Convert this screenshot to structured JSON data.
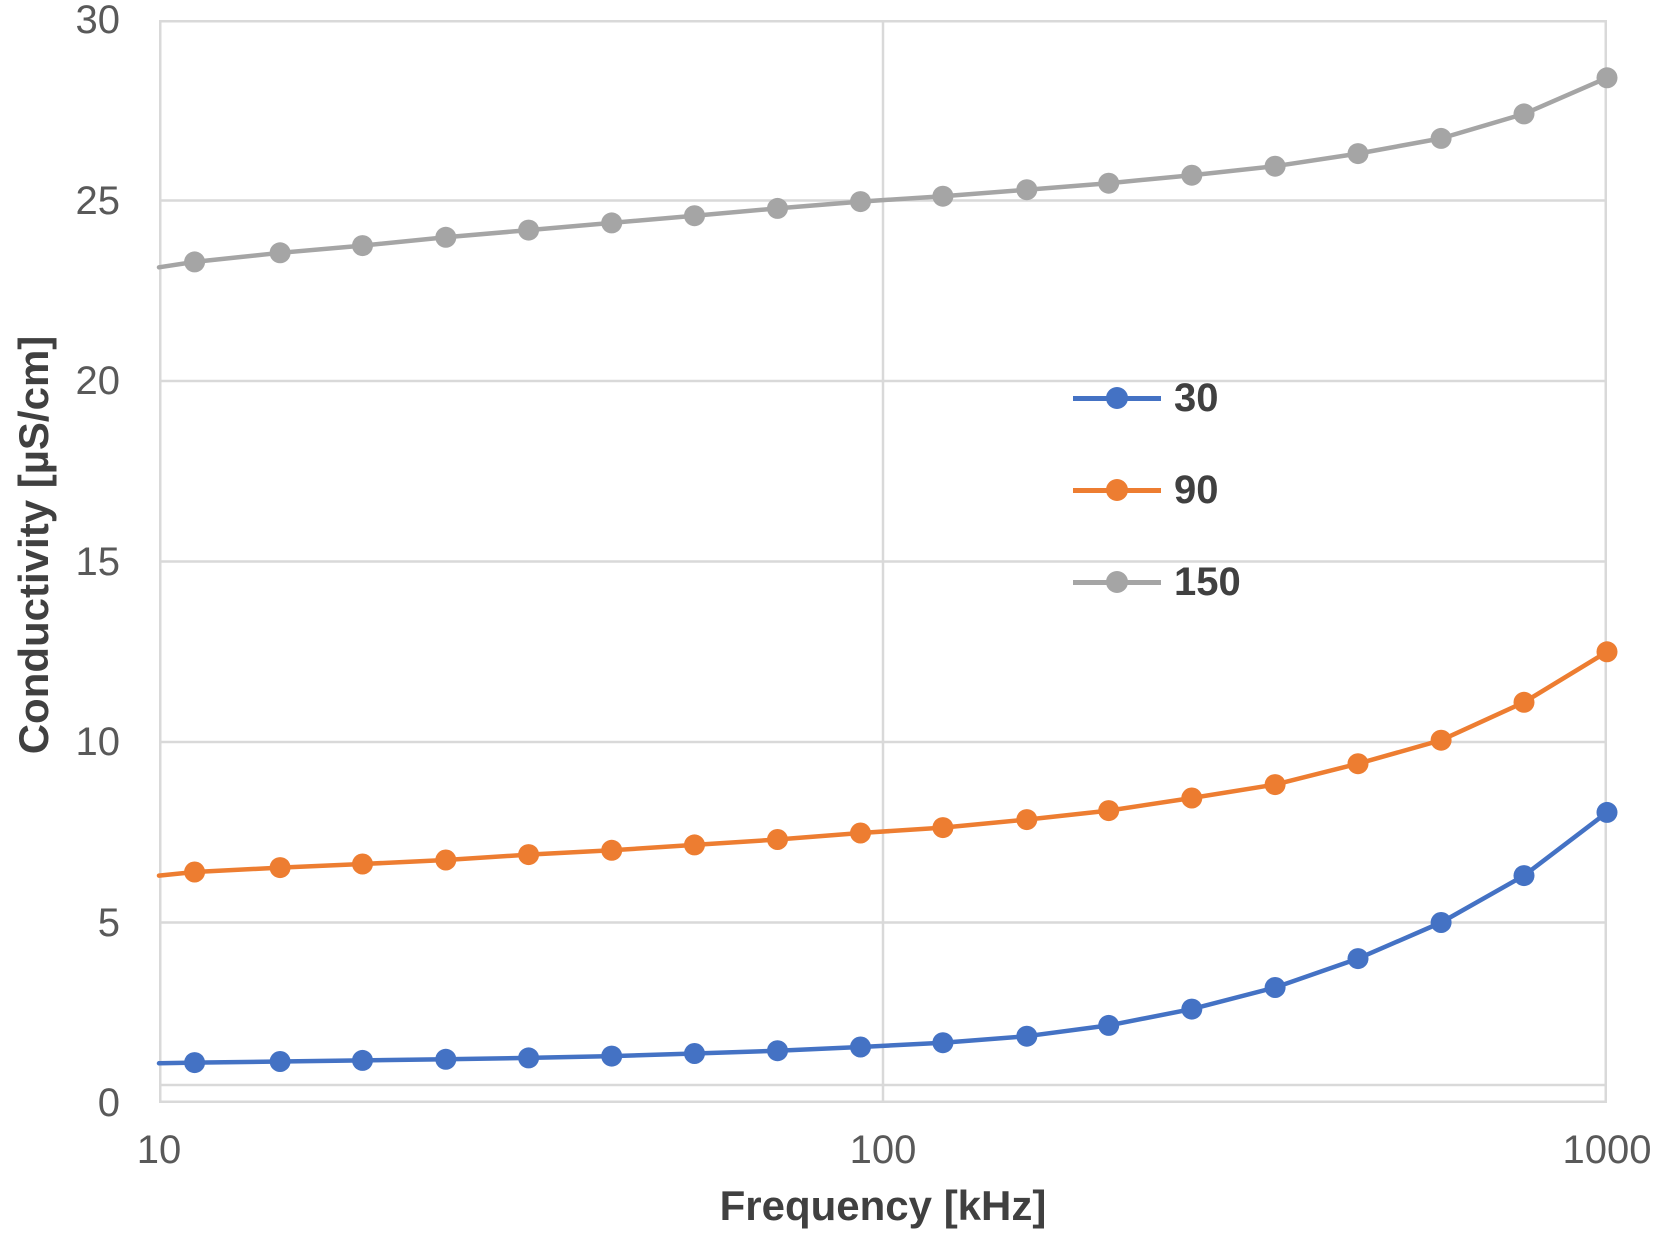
{
  "chart_data": {
    "type": "line",
    "title": "",
    "xlabel": "Frequency [kHz]",
    "ylabel": "Conductivity [µS/cm]",
    "x_scale": "log",
    "xlim": [
      10,
      1000
    ],
    "ylim": [
      0,
      30
    ],
    "x_ticks": [
      10,
      100,
      1000
    ],
    "y_ticks": [
      30,
      25,
      20,
      15,
      10,
      5,
      0
    ],
    "grid": true,
    "legend_position": "center-right",
    "markers_start_index": 1,
    "baseline_offset_value": 0.5,
    "x": [
      10,
      11.2,
      14.7,
      19.1,
      24.9,
      32.4,
      42.2,
      54.9,
      71.5,
      93.1,
      121,
      158,
      205,
      267,
      348,
      453,
      590,
      768,
      1000
    ],
    "series": [
      {
        "name": "30",
        "color": "#4472C4",
        "values": [
          1.1,
          1.12,
          1.15,
          1.18,
          1.21,
          1.25,
          1.3,
          1.37,
          1.45,
          1.55,
          1.67,
          1.85,
          2.15,
          2.6,
          3.2,
          4.0,
          5.0,
          6.3,
          8.05
        ]
      },
      {
        "name": "90",
        "color": "#ED7D31",
        "values": [
          6.3,
          6.4,
          6.52,
          6.62,
          6.73,
          6.88,
          7.0,
          7.15,
          7.3,
          7.48,
          7.63,
          7.85,
          8.1,
          8.45,
          8.82,
          9.4,
          10.05,
          11.1,
          12.5
        ]
      },
      {
        "name": "150",
        "color": "#A5A5A5",
        "values": [
          23.15,
          23.3,
          23.55,
          23.75,
          23.98,
          24.18,
          24.38,
          24.58,
          24.78,
          24.97,
          25.12,
          25.3,
          25.48,
          25.7,
          25.95,
          26.3,
          26.72,
          27.4,
          28.4
        ]
      }
    ],
    "colors": {
      "gridline": "#D9D9D9",
      "tick_label": "#595959",
      "axis_title": "#404040",
      "plot_background": "#FFFFFF"
    }
  }
}
